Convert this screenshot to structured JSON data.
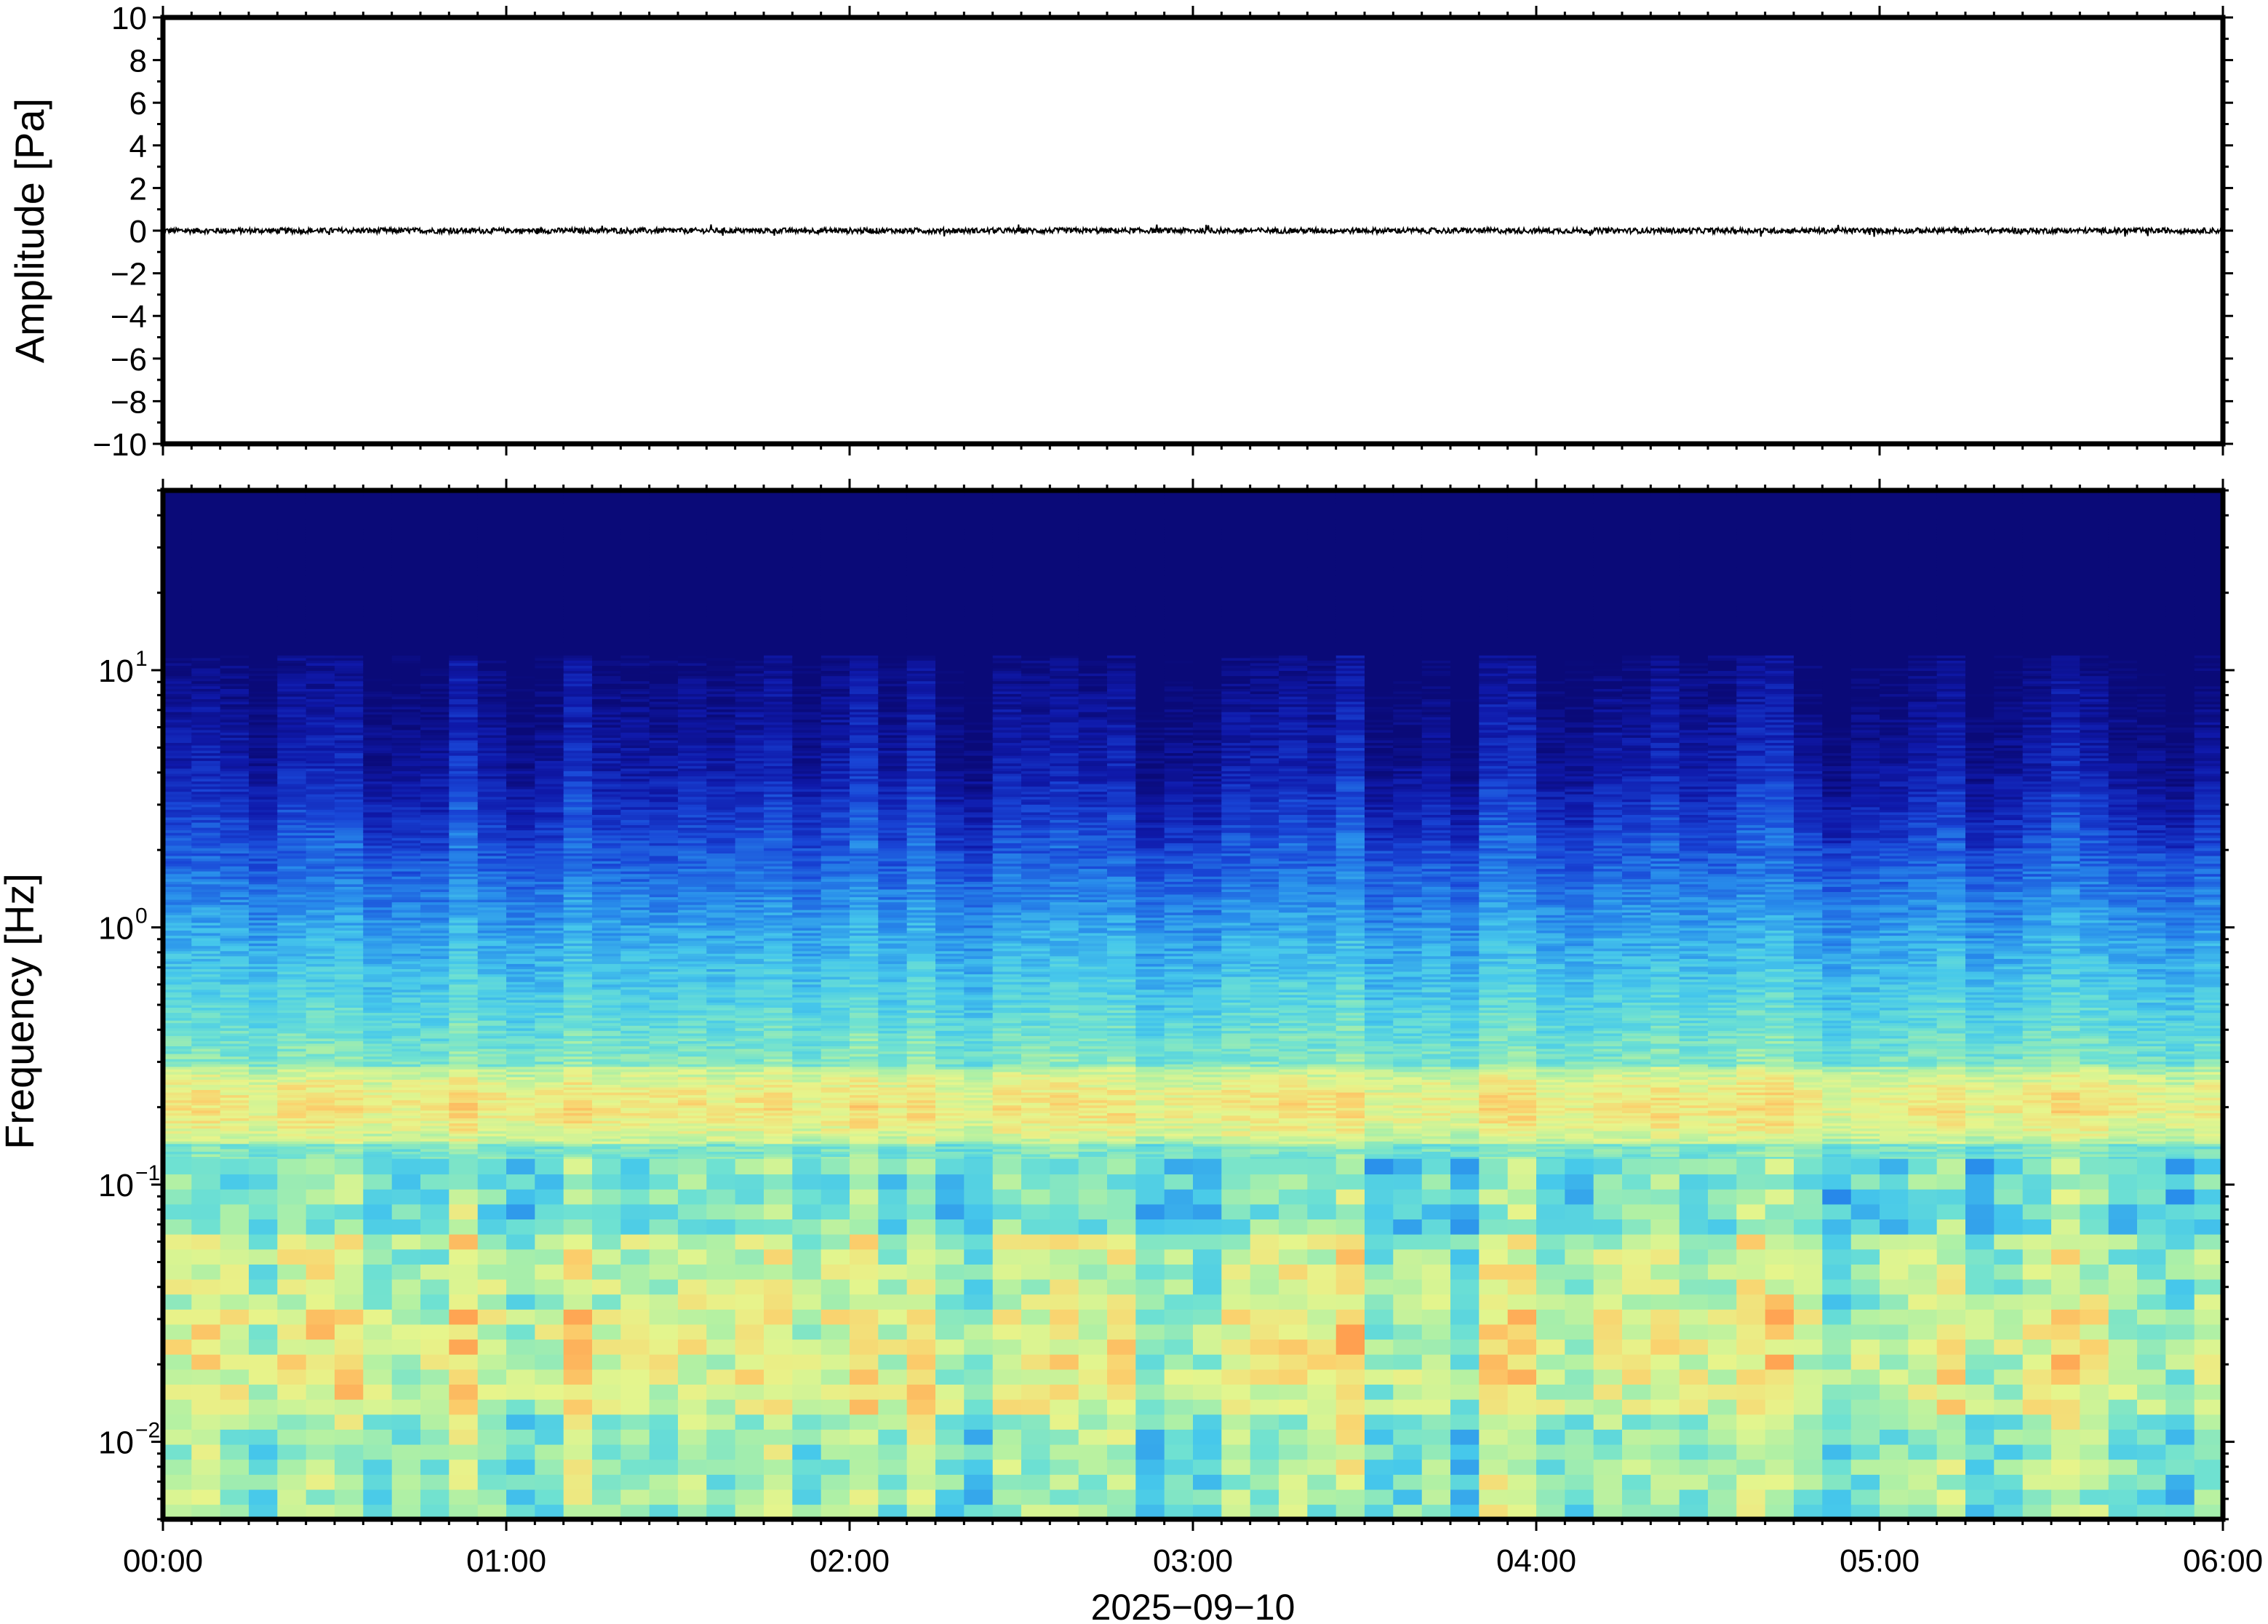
{
  "chart_data": [
    {
      "type": "line",
      "ylabel": "Amplitude [Pa]",
      "xlabel": "",
      "ylim": [
        -10,
        10
      ],
      "yticks": [
        "10",
        "8",
        "6",
        "4",
        "2",
        "0",
        "−2",
        "−4",
        "−6",
        "−8",
        "−10"
      ],
      "series": [
        {
          "values_description_mean": 0.0,
          "approx_peak_amplitude": 0.3,
          "color": "#000000"
        }
      ],
      "grid": false
    },
    {
      "type": "heatmap",
      "ylabel": "Frequency [Hz]",
      "xlabel": "2025−09−10",
      "y_scale": "log",
      "ylim_hz": [
        0.005,
        50
      ],
      "ytick_values": [
        0.01,
        0.1,
        1,
        10
      ],
      "ytick_base": "10",
      "ytick_exponents": [
        "−2",
        "−1",
        "0",
        "1"
      ],
      "xticks": [
        "00:00",
        "01:00",
        "02:00",
        "03:00",
        "04:00",
        "05:00",
        "06:00"
      ],
      "xlim_hours": [
        0,
        6
      ],
      "colormap": "jet-like (navy low power → blue → cyan → yellow → orange high power)",
      "colors": {
        "low": "#0a0a78",
        "mid_low": "#1e64e6",
        "mid": "#5ad2e6",
        "mid_high": "#d7f58c",
        "high": "#ffa550"
      },
      "grid": false
    }
  ]
}
